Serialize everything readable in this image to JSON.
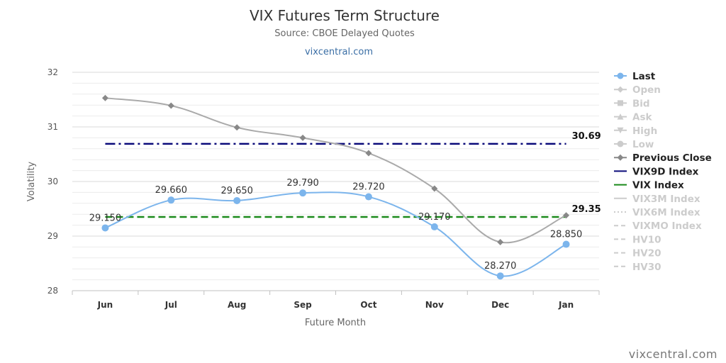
{
  "chart_data": {
    "type": "line",
    "title": "VIX Futures Term Structure",
    "subtitle": "Source: CBOE Delayed Quotes",
    "site_link": "vixcentral.com",
    "credit": "vixcentral.com",
    "xlabel": "Future Month",
    "ylabel": "Volatility",
    "categories": [
      "Jun",
      "Jul",
      "Aug",
      "Sep",
      "Oct",
      "Nov",
      "Dec",
      "Jan"
    ],
    "ylim": [
      28,
      32
    ],
    "yticks": [
      "28",
      "29",
      "30",
      "31",
      "32"
    ],
    "grid": true,
    "legend_position": "right",
    "series": [
      {
        "name": "Last",
        "values": [
          29.15,
          29.66,
          29.65,
          29.79,
          29.72,
          29.17,
          28.27,
          28.85
        ],
        "labels": [
          "29.150",
          "29.660",
          "29.650",
          "29.790",
          "29.720",
          "29.170",
          "28.270",
          "28.850"
        ],
        "color": "#7cb5ec",
        "marker": "circle"
      },
      {
        "name": "Previous Close",
        "values": [
          31.53,
          31.39,
          30.99,
          30.8,
          30.52,
          29.87,
          28.89,
          29.38
        ],
        "color": "#aaaaaa",
        "marker_color": "#888888",
        "marker": "diamond"
      }
    ],
    "reference_lines": [
      {
        "name": "VIX9D Index",
        "value": 30.69,
        "label": "30.69",
        "color": "#0a0a7a",
        "dash": "dash-dot"
      },
      {
        "name": "VIX Index",
        "value": 29.35,
        "label": "29.35",
        "color": "#1a8a1a",
        "dash": "dash"
      }
    ],
    "legend": [
      {
        "name": "Last",
        "active": true,
        "symbol": "circle-line",
        "color": "#7cb5ec"
      },
      {
        "name": "Open",
        "active": false,
        "symbol": "diamond-line"
      },
      {
        "name": "Bid",
        "active": false,
        "symbol": "square-line"
      },
      {
        "name": "Ask",
        "active": false,
        "symbol": "triangle-line"
      },
      {
        "name": "High",
        "active": false,
        "symbol": "triangle-down-line"
      },
      {
        "name": "Low",
        "active": false,
        "symbol": "circle-line"
      },
      {
        "name": "Previous Close",
        "active": true,
        "symbol": "diamond-line",
        "color": "#888888"
      },
      {
        "name": "VIX9D Index",
        "active": true,
        "symbol": "line",
        "color": "#0a0a7a"
      },
      {
        "name": "VIX Index",
        "active": true,
        "symbol": "line",
        "color": "#1a8a1a"
      },
      {
        "name": "VIX3M Index",
        "active": false,
        "symbol": "line"
      },
      {
        "name": "VIX6M Index",
        "active": false,
        "symbol": "dotted"
      },
      {
        "name": "VIXMO Index",
        "active": false,
        "symbol": "dashed"
      },
      {
        "name": "HV10",
        "active": false,
        "symbol": "dashed"
      },
      {
        "name": "HV20",
        "active": false,
        "symbol": "dashed"
      },
      {
        "name": "HV30",
        "active": false,
        "symbol": "dashed"
      }
    ],
    "inactive_color": "#cccccc"
  }
}
